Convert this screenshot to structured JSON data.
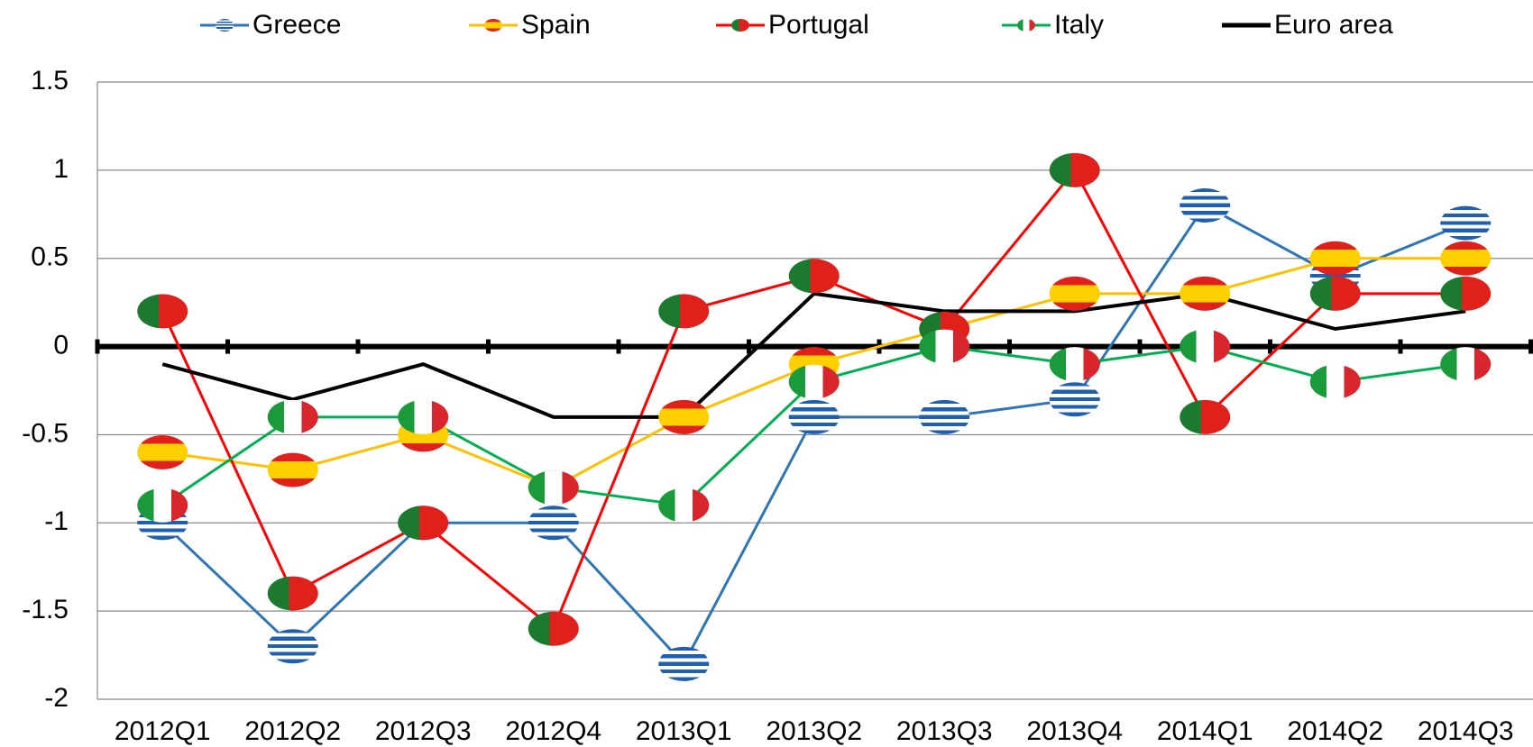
{
  "chart_data": {
    "type": "line",
    "categories": [
      "2012Q1",
      "2012Q2",
      "2012Q3",
      "2012Q4",
      "2013Q1",
      "2013Q2",
      "2013Q3",
      "2013Q4",
      "2014Q1",
      "2014Q2",
      "2014Q3"
    ],
    "series": [
      {
        "name": "Greece",
        "color": "#2e75b6",
        "values": [
          -1.0,
          -1.7,
          -1.0,
          -1.0,
          -1.8,
          -0.4,
          -0.4,
          -0.3,
          0.8,
          0.4,
          0.7
        ]
      },
      {
        "name": "Spain",
        "color": "#ffc000",
        "values": [
          -0.6,
          -0.7,
          -0.5,
          -0.8,
          -0.4,
          -0.1,
          0.1,
          0.3,
          0.3,
          0.5,
          0.5
        ]
      },
      {
        "name": "Portugal",
        "color": "#ff0000",
        "values": [
          0.2,
          -1.4,
          -1.0,
          -1.6,
          0.2,
          0.4,
          0.1,
          1.0,
          -0.4,
          0.3,
          0.3
        ]
      },
      {
        "name": "Italy",
        "color": "#00b050",
        "values": [
          -0.9,
          -0.4,
          -0.4,
          -0.8,
          -0.9,
          -0.2,
          0.0,
          -0.1,
          0.0,
          -0.2,
          -0.1
        ]
      },
      {
        "name": "Euro area",
        "color": "#000000",
        "values": [
          -0.1,
          -0.3,
          -0.1,
          -0.4,
          -0.4,
          0.3,
          0.2,
          0.2,
          0.3,
          0.1,
          0.2
        ]
      }
    ],
    "ylim": [
      -2,
      1.5
    ],
    "yticks": [
      -2,
      -1.5,
      -1,
      -0.5,
      0,
      0.5,
      1,
      1.5
    ],
    "grid": true,
    "legend": "top"
  }
}
